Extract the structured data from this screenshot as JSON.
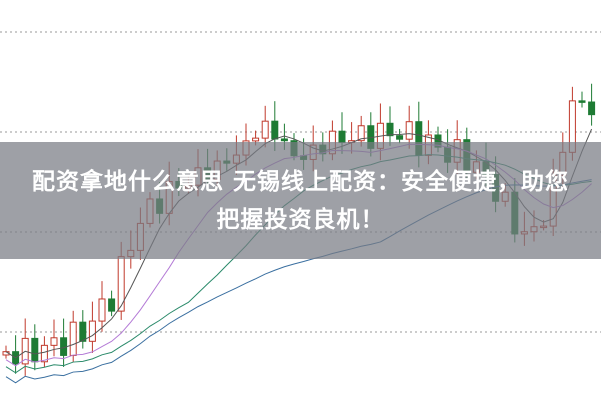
{
  "headline": {
    "line1": "配资拿地什么意思 无锡线上配资：安全便捷，助您",
    "line2": "把握投资良机！"
  },
  "colors": {
    "up_candle": "#c0392b",
    "down_candle": "#1e7b34",
    "ma_short": "#555555",
    "ma_mid": "#b47bd6",
    "ma_long": "#2a8a6a",
    "ma_longest": "#3a6fa0",
    "banner_bg": "#787c84"
  }
}
